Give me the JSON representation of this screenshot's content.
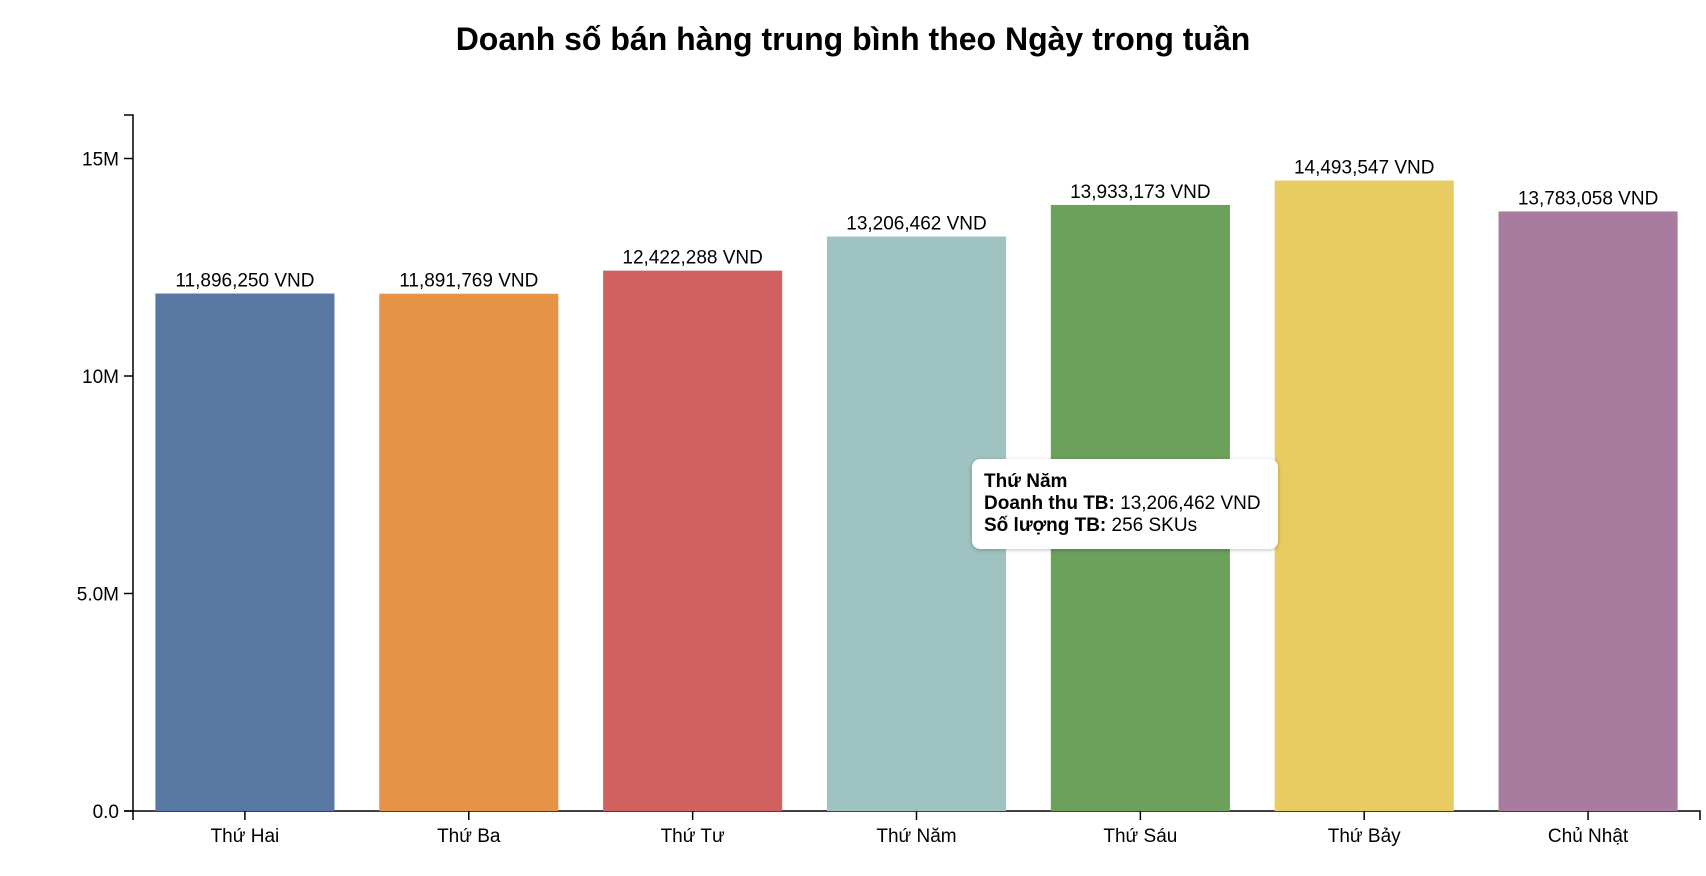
{
  "chart_data": {
    "type": "bar",
    "title": "Doanh số bán hàng trung bình theo Ngày trong tuần",
    "xlabel": "",
    "ylabel": "",
    "categories": [
      "Thứ Hai",
      "Thứ Ba",
      "Thứ Tư",
      "Thứ Năm",
      "Thứ Sáu",
      "Thứ Bảy",
      "Chủ Nhật"
    ],
    "values": [
      11896250,
      11891769,
      12422288,
      13206462,
      13933173,
      14493547,
      13783058
    ],
    "value_labels": [
      "11,896,250 VND",
      "11,891,769 VND",
      "12,422,288 VND",
      "13,206,462 VND",
      "13,933,173 VND",
      "14,493,547 VND",
      "13,783,058 VND"
    ],
    "colors": [
      "#5878a3",
      "#e49444",
      "#d16060",
      "#9fc3c1",
      "#6ba15b",
      "#e8cb61",
      "#a87c9f"
    ],
    "ylim": [
      0,
      16000000
    ],
    "yticks": [
      0,
      5000000,
      10000000,
      15000000
    ],
    "ytick_labels": [
      "0.0",
      "5.0M",
      "10M",
      "15M"
    ],
    "grid": false,
    "legend": "none"
  },
  "tooltip": {
    "title": "Thứ Năm",
    "revenue_label": "Doanh thu TB:",
    "revenue_value": "13,206,462 VND",
    "quantity_label": "Số lượng TB:",
    "quantity_value": "256 SKUs"
  }
}
